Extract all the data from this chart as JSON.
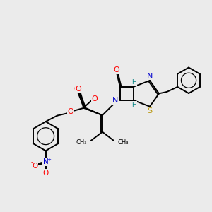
{
  "background_color": "#ebebeb",
  "figure_size": [
    3.0,
    3.0
  ],
  "dpi": 100,
  "atom_colors": {
    "O": "#ff0000",
    "N": "#0000cd",
    "S": "#b8960c",
    "C": "#000000",
    "H": "#008080"
  },
  "bond_color": "#000000",
  "bond_width": 1.4
}
